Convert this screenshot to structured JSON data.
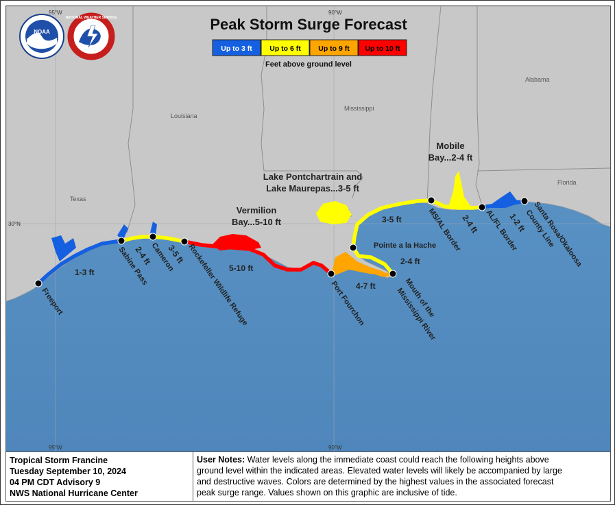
{
  "title": "Peak Storm Surge Forecast",
  "legend": {
    "items": [
      {
        "label": "Up to 3 ft",
        "color": "#1560e0"
      },
      {
        "label": "Up to 6 ft",
        "color": "#ffff00"
      },
      {
        "label": "Up to 9 ft",
        "color": "#ffa500"
      },
      {
        "label": "Up to 10 ft",
        "color": "#ff0000"
      }
    ],
    "caption": "Feet above ground level"
  },
  "logos": {
    "noaa": "NOAA",
    "nws": "NATIONAL WEATHER SERVICE"
  },
  "graticule": {
    "lon_top": [
      "95°W",
      "90°W"
    ],
    "lon_bottom": [
      "95°W",
      "90°W"
    ],
    "lat_left": "30°N"
  },
  "regions": {
    "louisiana": "Louisiana",
    "texas": "Texas",
    "mississippi": "Mississippi",
    "alabama": "Alabama",
    "florida": "Florida"
  },
  "points": {
    "freeport": "Freeport",
    "sabine_pass": "Sabine Pass",
    "cameron": "Cameron",
    "rockefeller": "Rockefeller Wildlife Refuge",
    "port_fourchon": "Port Fourchon",
    "mouth_line1": "Mouth of the",
    "mouth_line2": "Mississippi River",
    "pointe": "Pointe a la Hache",
    "msal": "MS/AL Border",
    "alfl": "AL/FL Border",
    "santa_line1": "Santa Rosa/Okaloosa",
    "santa_line2": "County Line"
  },
  "surge_labels": {
    "freeport_sabine": "1-3 ft",
    "sabine_cameron": "2-4 ft",
    "cameron_rockefeller": "3-5 ft",
    "rockefeller_fourchon": "5-10 ft",
    "fourchon_mouth": "4-7 ft",
    "mouth_pointe": "2-4 ft",
    "pointe_msal": "3-5 ft",
    "msal_alfl": "2-4 ft",
    "alfl_santa": "1-2 ft"
  },
  "callouts": {
    "vermilion_line1": "Vermilion",
    "vermilion_line2": "Bay...5-10 ft",
    "pontchartrain_line1": "Lake Pontchartrain and",
    "pontchartrain_line2": "Lake Maurepas...3-5 ft",
    "mobile_line1": "Mobile",
    "mobile_line2": "Bay...2-4 ft"
  },
  "footer": {
    "storm": "Tropical Storm Francine",
    "date": "Tuesday September 10, 2024",
    "advisory": "04 PM CDT Advisory 9",
    "issuer": "NWS National Hurricane Center",
    "notes_label": "User Notes:",
    "notes_line1": " Water levels along the immediate coast could reach the following heights above",
    "notes_line2": "ground level within the indicated areas. Elevated water levels will likely be accompanied by large",
    "notes_line3": "and destructive waves. Colors are determined by the highest values in the associated forecast",
    "notes_line4": "peak surge range. Values shown on this graphic are inclusive of tide."
  }
}
